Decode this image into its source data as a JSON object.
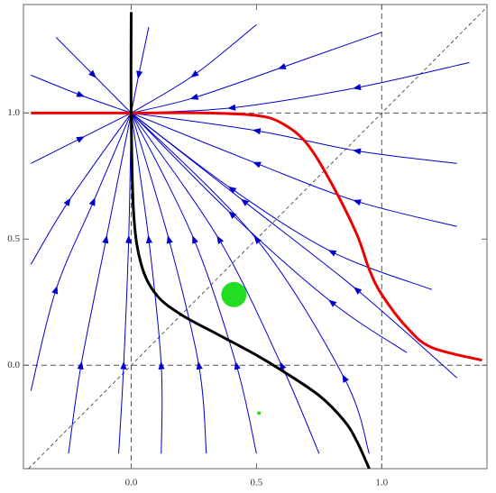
{
  "chart_data": {
    "type": "stream",
    "xlim": [
      -0.43,
      1.42
    ],
    "ylim": [
      -0.41,
      1.43
    ],
    "xticks": [
      {
        "value": 0,
        "label": "0.0"
      },
      {
        "value": 0.5,
        "label": "0.5"
      },
      {
        "value": 1,
        "label": "1.0"
      }
    ],
    "yticks": [
      {
        "value": 0,
        "label": "0.0"
      },
      {
        "value": 0.5,
        "label": "0.5"
      },
      {
        "value": 1,
        "label": "1.0"
      }
    ],
    "grid": true,
    "diagonal": true,
    "stream_color": "#0000cc",
    "streamlines": [
      {
        "x": [
          -0.3,
          -0.15,
          0
        ],
        "y": [
          1.3,
          1.15,
          1
        ]
      },
      {
        "x": [
          0.07,
          0.03,
          0
        ],
        "y": [
          1.34,
          1.15,
          1
        ]
      },
      {
        "x": [
          0.5,
          0.25,
          0
        ],
        "y": [
          1.35,
          1.15,
          1
        ]
      },
      {
        "x": [
          1.0,
          0.6,
          0.25,
          0
        ],
        "y": [
          1.32,
          1.18,
          1.06,
          1
        ]
      },
      {
        "x": [
          1.35,
          0.9,
          0.4,
          0
        ],
        "y": [
          1.2,
          1.1,
          1.02,
          1
        ]
      },
      {
        "x": [
          1.3,
          0.9,
          0.5,
          0
        ],
        "y": [
          0.8,
          0.85,
          0.93,
          1
        ]
      },
      {
        "x": [
          1.3,
          0.9,
          0.5,
          0
        ],
        "y": [
          0.55,
          0.65,
          0.8,
          1
        ]
      },
      {
        "x": [
          1.2,
          0.8,
          0.4,
          0
        ],
        "y": [
          0.3,
          0.45,
          0.7,
          1
        ]
      },
      {
        "x": [
          1.3,
          0.9,
          0.45,
          0
        ],
        "y": [
          -0.05,
          0.3,
          0.65,
          1
        ]
      },
      {
        "x": [
          1.1,
          0.8,
          0.4,
          0
        ],
        "y": [
          0.05,
          0.25,
          0.6,
          1
        ]
      },
      {
        "x": [
          0.95,
          0.85,
          0.5,
          0
        ],
        "y": [
          -0.35,
          -0.05,
          0.5,
          1
        ]
      },
      {
        "x": [
          0.75,
          0.6,
          0.35,
          0
        ],
        "y": [
          -0.35,
          0.0,
          0.5,
          1
        ]
      },
      {
        "x": [
          0.5,
          0.42,
          0.25,
          0
        ],
        "y": [
          -0.35,
          0.0,
          0.5,
          1
        ]
      },
      {
        "x": [
          0.3,
          0.27,
          0.15,
          0
        ],
        "y": [
          -0.35,
          0.0,
          0.5,
          1
        ]
      },
      {
        "x": [
          0.12,
          0.12,
          0.07,
          0
        ],
        "y": [
          -0.35,
          0.0,
          0.5,
          1
        ]
      },
      {
        "x": [
          -0.05,
          -0.03,
          -0.01,
          0
        ],
        "y": [
          -0.35,
          0.0,
          0.5,
          1
        ]
      },
      {
        "x": [
          -0.25,
          -0.2,
          -0.1,
          0
        ],
        "y": [
          -0.35,
          0.0,
          0.5,
          1
        ]
      },
      {
        "x": [
          -0.4,
          -0.3,
          -0.15,
          0
        ],
        "y": [
          -0.1,
          0.3,
          0.65,
          1
        ]
      },
      {
        "x": [
          -0.4,
          -0.25,
          0
        ],
        "y": [
          0.4,
          0.65,
          1
        ]
      },
      {
        "x": [
          -0.4,
          -0.2,
          0
        ],
        "y": [
          0.8,
          0.9,
          1
        ]
      },
      {
        "x": [
          -0.4,
          -0.2,
          0
        ],
        "y": [
          1.15,
          1.07,
          1
        ]
      }
    ],
    "series": [
      {
        "color": "#ee0000",
        "x": [
          -0.4,
          0,
          0.3,
          0.5,
          0.6,
          0.7,
          0.8,
          0.9,
          0.95,
          1.0,
          1.1,
          1.2,
          1.4
        ],
        "y": [
          1,
          1,
          1,
          0.99,
          0.96,
          0.88,
          0.72,
          0.52,
          0.38,
          0.28,
          0.15,
          0.07,
          0.02
        ]
      },
      {
        "color": "#000000",
        "x": [
          0,
          0,
          0.01,
          0.04,
          0.1,
          0.2,
          0.35,
          0.5,
          0.6,
          0.75,
          0.85,
          0.9,
          0.95
        ],
        "y": [
          1.4,
          1.0,
          0.6,
          0.4,
          0.28,
          0.2,
          0.12,
          0.04,
          -0.02,
          -0.12,
          -0.22,
          -0.3,
          -0.41
        ]
      }
    ],
    "points": {
      "color": "#22dd22",
      "x": [
        0.41,
        0.51
      ],
      "y": [
        0.28,
        -0.19
      ],
      "size": [
        14,
        2
      ]
    }
  }
}
